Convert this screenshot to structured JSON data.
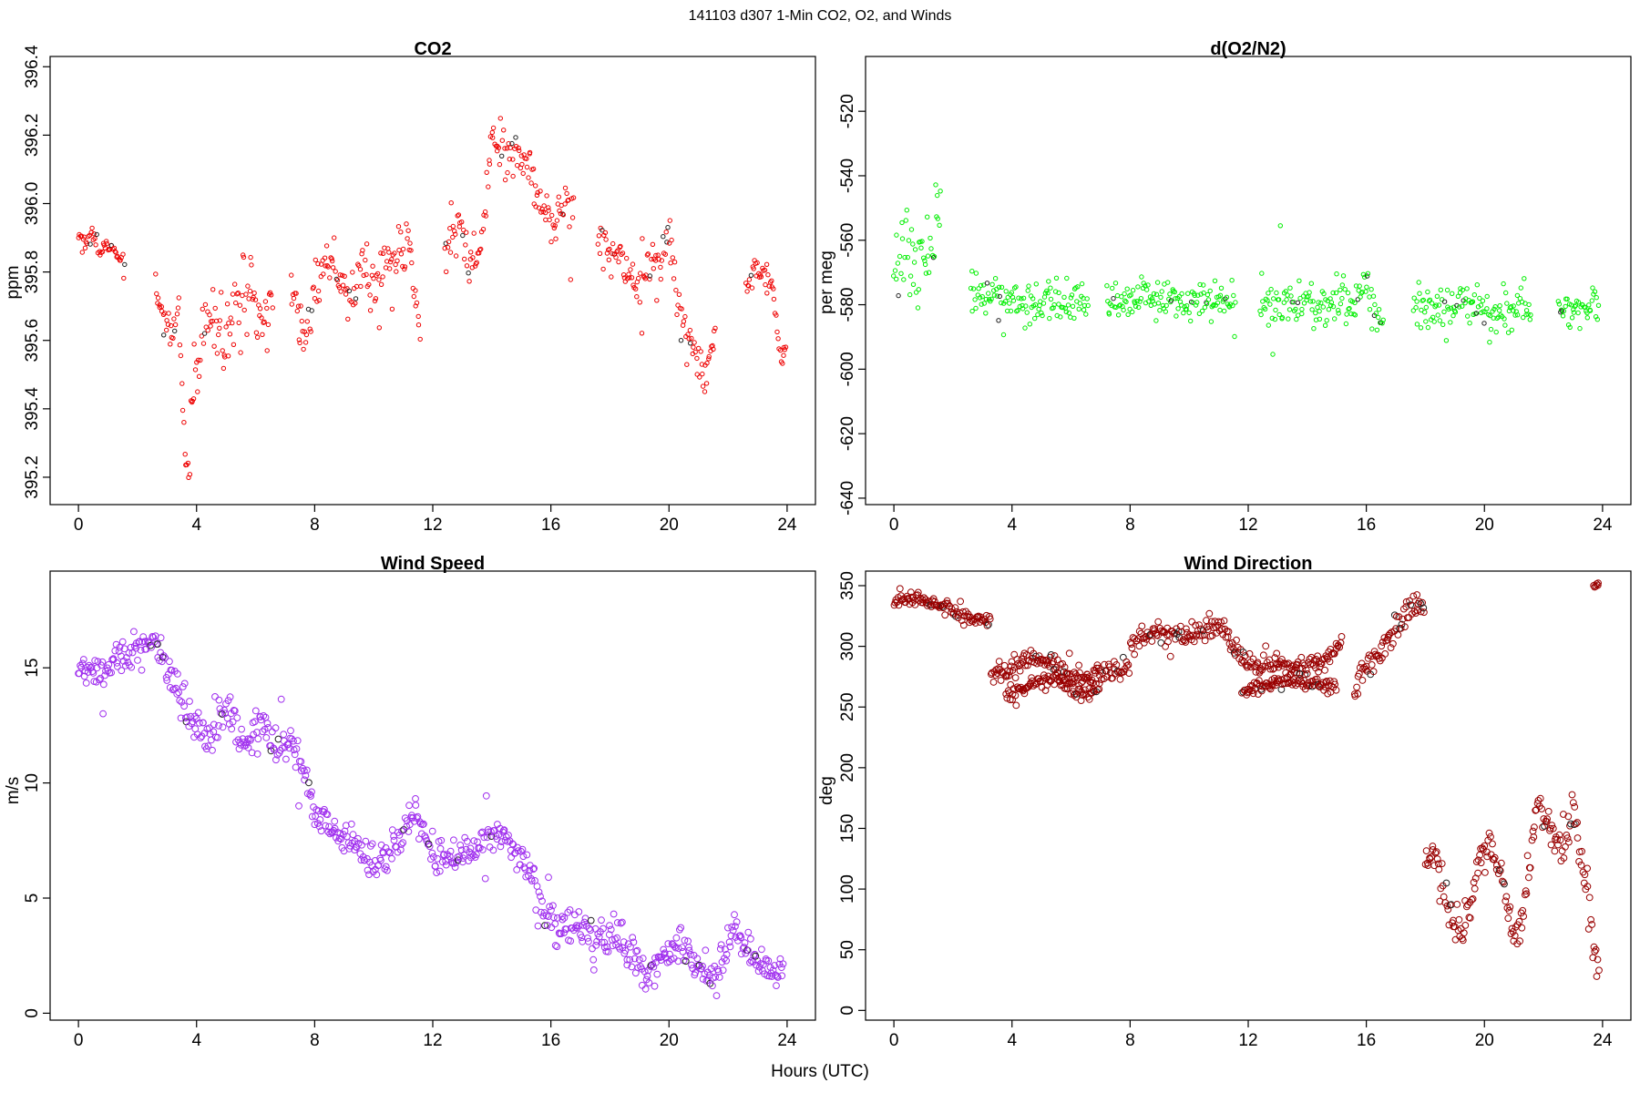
{
  "figure": {
    "title": "141103   d307   1-Min CO2, O2, and Winds",
    "xlabel": "Hours (UTC)"
  },
  "chart_data": [
    {
      "type": "scatter",
      "title": "CO2",
      "xlabel": "",
      "ylabel": "ppm",
      "xlim": [
        -0.96,
        24.96
      ],
      "ylim": [
        395.12,
        396.43
      ],
      "xticks": [
        "0",
        "4",
        "8",
        "12",
        "16",
        "20",
        "24"
      ],
      "yticks": [
        "395.2",
        "395.4",
        "395.6",
        "395.8",
        "396.0",
        "396.2",
        "396.4"
      ],
      "y_tick_values": [
        395.2,
        395.4,
        395.6,
        395.8,
        396.0,
        396.2,
        396.4
      ],
      "color": "#ee0000",
      "marker_radius": 2.2,
      "grid": false,
      "segments": [
        {
          "x": [
            0.0,
            0.3,
            0.5,
            0.8,
            1.0,
            1.3,
            1.6
          ],
          "y": [
            395.9,
            395.88,
            395.92,
            395.86,
            395.88,
            395.85,
            395.82
          ],
          "noise": 0.03
        },
        {
          "x": [
            2.6,
            2.9,
            3.1,
            3.4,
            3.6,
            3.8
          ],
          "y": [
            395.76,
            395.67,
            395.64,
            395.68,
            395.25,
            395.2
          ],
          "noise": 0.05
        },
        {
          "x": [
            3.8,
            4.2,
            4.6,
            5.0,
            5.4,
            5.8,
            6.2,
            6.6
          ],
          "y": [
            395.45,
            395.6,
            395.7,
            395.6,
            395.7,
            395.72,
            395.66,
            395.72
          ],
          "noise": 0.11
        },
        {
          "x": [
            7.2,
            7.6,
            8.0,
            8.4,
            8.8,
            9.2,
            9.6,
            10.0,
            10.4,
            10.8,
            11.2,
            11.6
          ],
          "y": [
            395.76,
            395.6,
            395.72,
            395.85,
            395.8,
            395.72,
            395.82,
            395.74,
            395.84,
            395.86,
            395.88,
            395.62
          ],
          "noise": 0.07
        },
        {
          "x": [
            12.4,
            12.8,
            13.2,
            13.6,
            14.0,
            14.4,
            14.8,
            15.2,
            15.6,
            16.0,
            16.4,
            16.8
          ],
          "y": [
            395.86,
            395.95,
            395.82,
            395.88,
            396.2,
            396.14,
            396.16,
            396.12,
            396.0,
            395.98,
            395.98,
            396.0
          ],
          "noise": 0.07
        },
        {
          "x": [
            17.6,
            18.0,
            18.4,
            18.8,
            19.2,
            19.6,
            20.0,
            20.4,
            20.8,
            21.2,
            21.6
          ],
          "y": [
            395.92,
            395.86,
            395.84,
            395.74,
            395.82,
            395.8,
            395.92,
            395.66,
            395.6,
            395.48,
            395.64
          ],
          "noise": 0.07
        },
        {
          "x": [
            22.6,
            22.9,
            23.2,
            23.5,
            23.8,
            24.0
          ],
          "y": [
            395.76,
            395.82,
            395.8,
            395.76,
            395.55,
            395.58
          ],
          "noise": 0.03
        }
      ]
    },
    {
      "type": "scatter",
      "title": "d(O2/N2)",
      "xlabel": "",
      "ylabel": "per meg",
      "xlim": [
        -0.96,
        24.96
      ],
      "ylim": [
        -642,
        -503
      ],
      "xticks": [
        "0",
        "4",
        "8",
        "12",
        "16",
        "20",
        "24"
      ],
      "yticks": [
        "-640",
        "-620",
        "-600",
        "-580",
        "-560",
        "-540",
        "-520"
      ],
      "y_tick_values": [
        -640,
        -620,
        -600,
        -580,
        -560,
        -540,
        -520
      ],
      "color": "#00ee00",
      "marker_radius": 2.2,
      "grid": false,
      "segments": [
        {
          "x": [
            0.0,
            0.4,
            0.8,
            1.2,
            1.6
          ],
          "y": [
            -570,
            -560,
            -575,
            -560,
            -555
          ],
          "noise": 14
        },
        {
          "x": [
            2.6,
            3.2,
            3.8,
            4.4,
            5.0,
            5.6,
            6.2,
            6.6
          ],
          "y": [
            -575,
            -578,
            -578,
            -580,
            -578,
            -580,
            -580,
            -582
          ],
          "noise": 7
        },
        {
          "x": [
            7.2,
            7.8,
            8.4,
            9.0,
            9.6,
            10.2,
            10.8,
            11.4,
            11.6
          ],
          "y": [
            -578,
            -580,
            -578,
            -579,
            -578,
            -579,
            -578,
            -580,
            -580
          ],
          "noise": 6
        },
        {
          "x": [
            12.4,
            13.0,
            13.6,
            14.2,
            14.8,
            15.4,
            16.0,
            16.6
          ],
          "y": [
            -580,
            -581,
            -580,
            -580,
            -580,
            -580,
            -574,
            -588
          ],
          "noise": 7
        },
        {
          "x": [
            17.6,
            18.2,
            18.8,
            19.4,
            20.0,
            20.6,
            21.2,
            21.6
          ],
          "y": [
            -578,
            -580,
            -581,
            -580,
            -582,
            -582,
            -580,
            -580
          ],
          "noise": 7
        },
        {
          "x": [
            22.5,
            23.0,
            23.5,
            23.9
          ],
          "y": [
            -583,
            -582,
            -581,
            -580
          ],
          "noise": 5
        }
      ]
    },
    {
      "type": "scatter",
      "title": "Wind Speed",
      "xlabel": "",
      "ylabel": "m/s",
      "xlim": [
        -0.96,
        24.96
      ],
      "ylim": [
        -0.3,
        19.2
      ],
      "xticks": [
        "0",
        "4",
        "8",
        "12",
        "16",
        "20",
        "24"
      ],
      "yticks": [
        "0",
        "5",
        "10",
        "15"
      ],
      "y_tick_values": [
        0,
        5,
        10,
        15
      ],
      "color": "#a030ee",
      "marker_radius": 3.4,
      "grid": false,
      "segments": [
        {
          "x": [
            0.0,
            1.0,
            2.0,
            2.6,
            3.2,
            3.8,
            4.4,
            5.0,
            5.6,
            6.2,
            6.8,
            7.4,
            8.0,
            8.4,
            9.0,
            9.6,
            10.2,
            10.8,
            11.4,
            12.0,
            12.6,
            13.2,
            13.8,
            14.4,
            15.0,
            15.6,
            16.2,
            16.8,
            17.4,
            18.0,
            18.6,
            19.2,
            19.8,
            20.4,
            21.0,
            21.6,
            22.2,
            22.8,
            23.4,
            23.9
          ],
          "y": [
            15.0,
            15.0,
            16.0,
            16.2,
            14.5,
            12.5,
            12.2,
            13.2,
            11.5,
            12.5,
            11.5,
            11.8,
            8.8,
            8.2,
            7.8,
            7.0,
            6.5,
            7.5,
            8.8,
            6.6,
            6.8,
            6.8,
            7.8,
            7.6,
            6.6,
            5.2,
            3.6,
            3.8,
            3.2,
            3.4,
            3.0,
            1.5,
            2.5,
            3.0,
            2.0,
            1.6,
            3.6,
            2.6,
            2.0,
            1.6
          ],
          "noise": 0.8
        }
      ]
    },
    {
      "type": "scatter",
      "title": "Wind Direction",
      "xlabel": "",
      "ylabel": "deg",
      "xlim": [
        -0.96,
        24.96
      ],
      "ylim": [
        -8,
        362
      ],
      "xticks": [
        "0",
        "4",
        "8",
        "12",
        "16",
        "20",
        "24"
      ],
      "yticks": [
        "0",
        "50",
        "100",
        "150",
        "200",
        "250",
        "300",
        "350"
      ],
      "y_tick_values": [
        0,
        50,
        100,
        150,
        200,
        250,
        300,
        350
      ],
      "color": "#990000",
      "marker_radius": 3.4,
      "grid": false,
      "segments": [
        {
          "x": [
            0.0,
            0.6,
            1.2,
            1.8,
            2.4,
            3.0,
            3.3
          ],
          "y": [
            338,
            340,
            335,
            332,
            325,
            323,
            320
          ],
          "noise": 5
        },
        {
          "x": [
            3.3,
            4.0,
            4.8,
            5.6,
            6.4,
            7.2,
            8.0
          ],
          "y": [
            278,
            282,
            292,
            280,
            275,
            280,
            285
          ],
          "noise": 8
        },
        {
          "x": [
            3.8,
            4.6,
            5.4,
            6.2,
            7.0
          ],
          "y": [
            260,
            268,
            275,
            262,
            265
          ],
          "noise": 6
        },
        {
          "x": [
            8.0,
            8.8,
            9.6,
            10.4,
            11.2,
            11.6,
            12.2,
            12.8,
            13.4,
            14.0,
            14.6,
            15.2
          ],
          "y": [
            300,
            312,
            310,
            312,
            315,
            290,
            285,
            282,
            285,
            282,
            288,
            305
          ],
          "noise": 9
        },
        {
          "x": [
            11.8,
            12.6,
            13.4,
            14.2,
            15.0
          ],
          "y": [
            262,
            268,
            272,
            270,
            265
          ],
          "noise": 6
        },
        {
          "x": [
            15.6,
            16.0,
            16.4,
            16.8,
            17.2,
            17.6,
            18.0
          ],
          "y": [
            265,
            280,
            295,
            305,
            320,
            335,
            330
          ],
          "noise": 12
        },
        {
          "x": [
            18.0,
            18.3,
            18.6,
            18.9,
            19.2,
            19.5,
            19.8,
            20.2,
            20.6,
            21.0,
            21.4,
            21.8,
            22.2,
            22.6,
            23.0,
            23.4,
            23.7,
            23.9
          ],
          "y": [
            130,
            125,
            100,
            75,
            55,
            85,
            120,
            140,
            110,
            60,
            90,
            170,
            150,
            130,
            165,
            110,
            50,
            20
          ],
          "noise": 16
        },
        {
          "x": [
            23.7,
            23.9
          ],
          "y": [
            352,
            348
          ],
          "noise": 4
        }
      ]
    }
  ]
}
